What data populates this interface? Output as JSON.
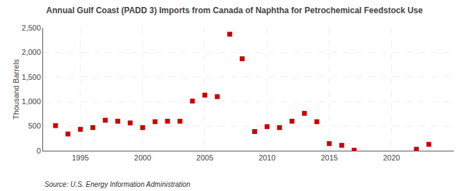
{
  "chart_data": {
    "type": "scatter",
    "title": "Annual Gulf Coast (PADD 3) Imports from Canada of Naphtha for Petrochemical Feedstock Use",
    "ylabel": "Thousand Barrels",
    "annotations": [
      "Source: U.S. Energy Information Administration"
    ],
    "x": [
      1993,
      1994,
      1995,
      1996,
      1997,
      1998,
      1999,
      2000,
      2001,
      2002,
      2003,
      2004,
      2005,
      2006,
      2007,
      2008,
      2009,
      2010,
      2011,
      2012,
      2013,
      2014,
      2015,
      2016,
      2017,
      2022,
      2023
    ],
    "values": [
      510,
      340,
      435,
      470,
      620,
      600,
      565,
      470,
      590,
      600,
      600,
      1010,
      1130,
      1100,
      2370,
      1870,
      390,
      490,
      470,
      600,
      760,
      590,
      145,
      110,
      10,
      30,
      130
    ],
    "color": "#cc0000",
    "marker": "square",
    "xlim": [
      1992,
      2025
    ],
    "xticks": [
      1995,
      2000,
      2005,
      2010,
      2015,
      2020
    ],
    "ylim": [
      0,
      2500
    ],
    "yticks": [
      0,
      500,
      {
        "value": 1000,
        "label": "1,000"
      },
      {
        "value": 1500,
        "label": "1,500"
      },
      {
        "value": 2000,
        "label": "2,000"
      },
      {
        "value": 2500,
        "label": "2,500"
      }
    ],
    "grid": true
  }
}
